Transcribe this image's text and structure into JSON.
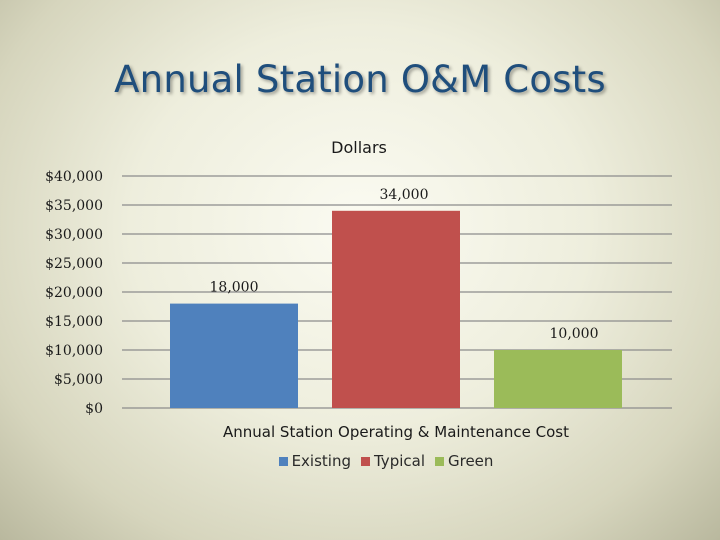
{
  "slide_title": "Annual Station O&M Costs",
  "chart_data": {
    "type": "bar",
    "title": "Dollars",
    "xlabel": "Annual Station Operating & Maintenance Cost",
    "ylabel": "",
    "ylim": [
      0,
      40000
    ],
    "ytick_values": [
      0,
      5000,
      10000,
      15000,
      20000,
      25000,
      30000,
      35000,
      40000
    ],
    "ytick_labels": [
      "$0",
      "$5,000",
      "$10,000",
      "$15,000",
      "$20,000",
      "$25,000",
      "$30,000",
      "$35,000",
      "$40,000"
    ],
    "grid": true,
    "legend_position": "bottom",
    "series": [
      {
        "name": "Existing",
        "value": 18000,
        "label": "18,000",
        "color": "#4f81bd"
      },
      {
        "name": "Typical",
        "value": 34000,
        "label": "34,000",
        "color": "#c0504d"
      },
      {
        "name": "Green",
        "value": 10000,
        "label": "10,000",
        "color": "#9bbb59"
      }
    ]
  }
}
